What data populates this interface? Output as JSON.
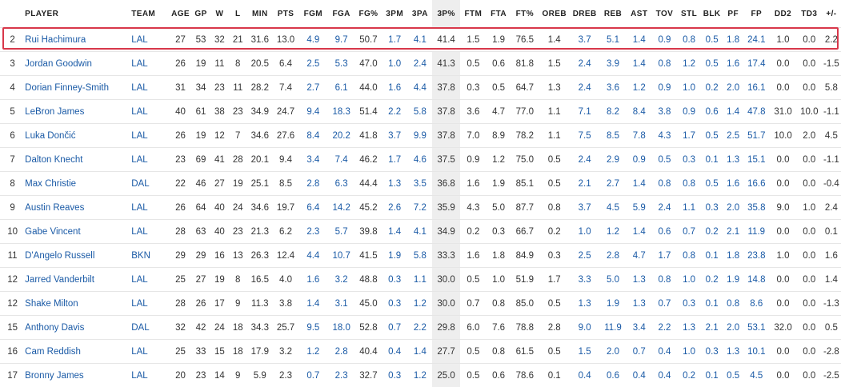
{
  "columns": [
    {
      "key": "player",
      "label": "PLAYER"
    },
    {
      "key": "team",
      "label": "TEAM"
    },
    {
      "key": "age",
      "label": "AGE"
    },
    {
      "key": "gp",
      "label": "GP"
    },
    {
      "key": "w",
      "label": "W"
    },
    {
      "key": "l",
      "label": "L"
    },
    {
      "key": "min",
      "label": "MIN"
    },
    {
      "key": "pts",
      "label": "PTS"
    },
    {
      "key": "fgm",
      "label": "FGM"
    },
    {
      "key": "fga",
      "label": "FGA"
    },
    {
      "key": "fgp",
      "label": "FG%"
    },
    {
      "key": "tpm",
      "label": "3PM"
    },
    {
      "key": "tpa",
      "label": "3PA"
    },
    {
      "key": "tpp",
      "label": "3P%"
    },
    {
      "key": "ftm",
      "label": "FTM"
    },
    {
      "key": "fta",
      "label": "FTA"
    },
    {
      "key": "ftp",
      "label": "FT%"
    },
    {
      "key": "oreb",
      "label": "OREB"
    },
    {
      "key": "dreb",
      "label": "DREB"
    },
    {
      "key": "reb",
      "label": "REB"
    },
    {
      "key": "ast",
      "label": "AST"
    },
    {
      "key": "tov",
      "label": "TOV"
    },
    {
      "key": "stl",
      "label": "STL"
    },
    {
      "key": "blk",
      "label": "BLK"
    },
    {
      "key": "pf",
      "label": "PF"
    },
    {
      "key": "fp",
      "label": "FP"
    },
    {
      "key": "dd2",
      "label": "DD2"
    },
    {
      "key": "td3",
      "label": "TD3"
    },
    {
      "key": "pm",
      "label": "+/-"
    }
  ],
  "sorted_column": "3P%",
  "highlighted_row": 0,
  "rows": [
    [
      "2",
      "Rui Hachimura",
      "LAL",
      "27",
      "53",
      "32",
      "21",
      "31.6",
      "13.0",
      "4.9",
      "9.7",
      "50.7",
      "1.7",
      "4.1",
      "41.4",
      "1.5",
      "1.9",
      "76.5",
      "1.4",
      "3.7",
      "5.1",
      "1.4",
      "0.9",
      "0.8",
      "0.5",
      "1.8",
      "24.1",
      "1.0",
      "0.0",
      "2.2"
    ],
    [
      "3",
      "Jordan Goodwin",
      "LAL",
      "26",
      "19",
      "11",
      "8",
      "20.5",
      "6.4",
      "2.5",
      "5.3",
      "47.0",
      "1.0",
      "2.4",
      "41.3",
      "0.5",
      "0.6",
      "81.8",
      "1.5",
      "2.4",
      "3.9",
      "1.4",
      "0.8",
      "1.2",
      "0.5",
      "1.6",
      "17.4",
      "0.0",
      "0.0",
      "-1.5"
    ],
    [
      "4",
      "Dorian Finney-Smith",
      "LAL",
      "31",
      "34",
      "23",
      "11",
      "28.2",
      "7.4",
      "2.7",
      "6.1",
      "44.0",
      "1.6",
      "4.4",
      "37.8",
      "0.3",
      "0.5",
      "64.7",
      "1.3",
      "2.4",
      "3.6",
      "1.2",
      "0.9",
      "1.0",
      "0.2",
      "2.0",
      "16.1",
      "0.0",
      "0.0",
      "5.8"
    ],
    [
      "5",
      "LeBron James",
      "LAL",
      "40",
      "61",
      "38",
      "23",
      "34.9",
      "24.7",
      "9.4",
      "18.3",
      "51.4",
      "2.2",
      "5.8",
      "37.8",
      "3.6",
      "4.7",
      "77.0",
      "1.1",
      "7.1",
      "8.2",
      "8.4",
      "3.8",
      "0.9",
      "0.6",
      "1.4",
      "47.8",
      "31.0",
      "10.0",
      "-1.1"
    ],
    [
      "6",
      "Luka Dončić",
      "LAL",
      "26",
      "19",
      "12",
      "7",
      "34.6",
      "27.6",
      "8.4",
      "20.2",
      "41.8",
      "3.7",
      "9.9",
      "37.8",
      "7.0",
      "8.9",
      "78.2",
      "1.1",
      "7.5",
      "8.5",
      "7.8",
      "4.3",
      "1.7",
      "0.5",
      "2.5",
      "51.7",
      "10.0",
      "2.0",
      "4.5"
    ],
    [
      "7",
      "Dalton Knecht",
      "LAL",
      "23",
      "69",
      "41",
      "28",
      "20.1",
      "9.4",
      "3.4",
      "7.4",
      "46.2",
      "1.7",
      "4.6",
      "37.5",
      "0.9",
      "1.2",
      "75.0",
      "0.5",
      "2.4",
      "2.9",
      "0.9",
      "0.5",
      "0.3",
      "0.1",
      "1.3",
      "15.1",
      "0.0",
      "0.0",
      "-1.1"
    ],
    [
      "8",
      "Max Christie",
      "DAL",
      "22",
      "46",
      "27",
      "19",
      "25.1",
      "8.5",
      "2.8",
      "6.3",
      "44.4",
      "1.3",
      "3.5",
      "36.8",
      "1.6",
      "1.9",
      "85.1",
      "0.5",
      "2.1",
      "2.7",
      "1.4",
      "0.8",
      "0.8",
      "0.5",
      "1.6",
      "16.6",
      "0.0",
      "0.0",
      "-0.4"
    ],
    [
      "9",
      "Austin Reaves",
      "LAL",
      "26",
      "64",
      "40",
      "24",
      "34.6",
      "19.7",
      "6.4",
      "14.2",
      "45.2",
      "2.6",
      "7.2",
      "35.9",
      "4.3",
      "5.0",
      "87.7",
      "0.8",
      "3.7",
      "4.5",
      "5.9",
      "2.4",
      "1.1",
      "0.3",
      "2.0",
      "35.8",
      "9.0",
      "1.0",
      "2.4"
    ],
    [
      "10",
      "Gabe Vincent",
      "LAL",
      "28",
      "63",
      "40",
      "23",
      "21.3",
      "6.2",
      "2.3",
      "5.7",
      "39.8",
      "1.4",
      "4.1",
      "34.9",
      "0.2",
      "0.3",
      "66.7",
      "0.2",
      "1.0",
      "1.2",
      "1.4",
      "0.6",
      "0.7",
      "0.2",
      "2.1",
      "11.9",
      "0.0",
      "0.0",
      "0.1"
    ],
    [
      "11",
      "D'Angelo Russell",
      "BKN",
      "29",
      "29",
      "16",
      "13",
      "26.3",
      "12.4",
      "4.4",
      "10.7",
      "41.5",
      "1.9",
      "5.8",
      "33.3",
      "1.6",
      "1.8",
      "84.9",
      "0.3",
      "2.5",
      "2.8",
      "4.7",
      "1.7",
      "0.8",
      "0.1",
      "1.8",
      "23.8",
      "1.0",
      "0.0",
      "1.6"
    ],
    [
      "12",
      "Jarred Vanderbilt",
      "LAL",
      "25",
      "27",
      "19",
      "8",
      "16.5",
      "4.0",
      "1.6",
      "3.2",
      "48.8",
      "0.3",
      "1.1",
      "30.0",
      "0.5",
      "1.0",
      "51.9",
      "1.7",
      "3.3",
      "5.0",
      "1.3",
      "0.8",
      "1.0",
      "0.2",
      "1.9",
      "14.8",
      "0.0",
      "0.0",
      "1.4"
    ],
    [
      "12",
      "Shake Milton",
      "LAL",
      "28",
      "26",
      "17",
      "9",
      "11.3",
      "3.8",
      "1.4",
      "3.1",
      "45.0",
      "0.3",
      "1.2",
      "30.0",
      "0.7",
      "0.8",
      "85.0",
      "0.5",
      "1.3",
      "1.9",
      "1.3",
      "0.7",
      "0.3",
      "0.1",
      "0.8",
      "8.6",
      "0.0",
      "0.0",
      "-1.3"
    ],
    [
      "15",
      "Anthony Davis",
      "DAL",
      "32",
      "42",
      "24",
      "18",
      "34.3",
      "25.7",
      "9.5",
      "18.0",
      "52.8",
      "0.7",
      "2.2",
      "29.8",
      "6.0",
      "7.6",
      "78.8",
      "2.8",
      "9.0",
      "11.9",
      "3.4",
      "2.2",
      "1.3",
      "2.1",
      "2.0",
      "53.1",
      "32.0",
      "0.0",
      "0.5"
    ],
    [
      "16",
      "Cam Reddish",
      "LAL",
      "25",
      "33",
      "15",
      "18",
      "17.9",
      "3.2",
      "1.2",
      "2.8",
      "40.4",
      "0.4",
      "1.4",
      "27.7",
      "0.5",
      "0.8",
      "61.5",
      "0.5",
      "1.5",
      "2.0",
      "0.7",
      "0.4",
      "1.0",
      "0.3",
      "1.3",
      "10.1",
      "0.0",
      "0.0",
      "-2.8"
    ],
    [
      "17",
      "Bronny James",
      "LAL",
      "20",
      "23",
      "14",
      "9",
      "5.9",
      "2.3",
      "0.7",
      "2.3",
      "32.7",
      "0.3",
      "1.2",
      "25.0",
      "0.5",
      "0.6",
      "78.6",
      "0.1",
      "0.4",
      "0.6",
      "0.4",
      "0.4",
      "0.2",
      "0.1",
      "0.5",
      "4.5",
      "0.0",
      "0.0",
      "-2.5"
    ]
  ]
}
